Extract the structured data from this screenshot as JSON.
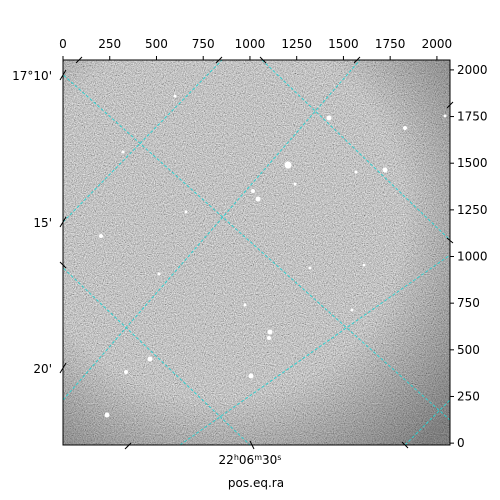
{
  "chart_data": {
    "type": "image",
    "xlim": [
      0,
      2070
    ],
    "xticks": [
      0,
      250,
      500,
      750,
      1000,
      1250,
      1500,
      1750,
      2000
    ],
    "ylim": [
      -10,
      2053
    ],
    "yticks": [
      0,
      250,
      500,
      750,
      1000,
      1250,
      1500,
      1750,
      2000
    ],
    "dec_tick_labels": [
      "17°10'",
      "15'",
      "20'"
    ],
    "ra_tick_parts": [
      "22",
      "h",
      "06",
      "m",
      "30",
      "s"
    ],
    "xlabel": "pos.eq.ra"
  }
}
